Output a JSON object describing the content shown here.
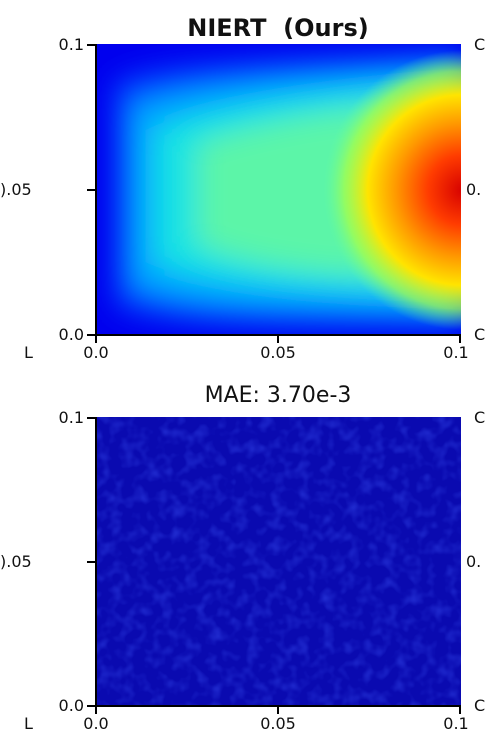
{
  "chart_data": [
    {
      "type": "heatmap",
      "title": "NIERT  (Ours)",
      "xlim": [
        0.0,
        0.1
      ],
      "ylim": [
        0.0,
        0.1
      ],
      "x_ticks": [
        "0.0",
        "0.05",
        "0.1"
      ],
      "y_ticks": [
        "0.0",
        "0.05",
        "0.1"
      ],
      "colormap": "jet",
      "field": "temperature-like field: low (blue) near the left and along top/bottom edges, rising to a maximum (red) at the center of the right edge (x=0.1, y=0.05)",
      "grid": false
    },
    {
      "type": "heatmap",
      "title": "MAE: 3.70e-3",
      "xlim": [
        0.0,
        0.1
      ],
      "ylim": [
        0.0,
        0.1
      ],
      "x_ticks": [
        "0.0",
        "0.05",
        "0.1"
      ],
      "y_ticks": [
        "0.0",
        "0.05",
        "0.1"
      ],
      "colormap": "jet",
      "field": "absolute error map, nearly uniform dark blue with faint noise",
      "grid": false
    }
  ],
  "edge_fragments": {
    "left_top_y_mid": ").05",
    "left_top_x_origin": "L",
    "left_bottom_y_mid": ").05",
    "left_bottom_x_origin": "L",
    "right_top_1": "C",
    "right_top_2": "0.",
    "right_top_3": "C",
    "right_bottom_1": "C",
    "right_bottom_2": "0.",
    "right_bottom_3": "C"
  }
}
